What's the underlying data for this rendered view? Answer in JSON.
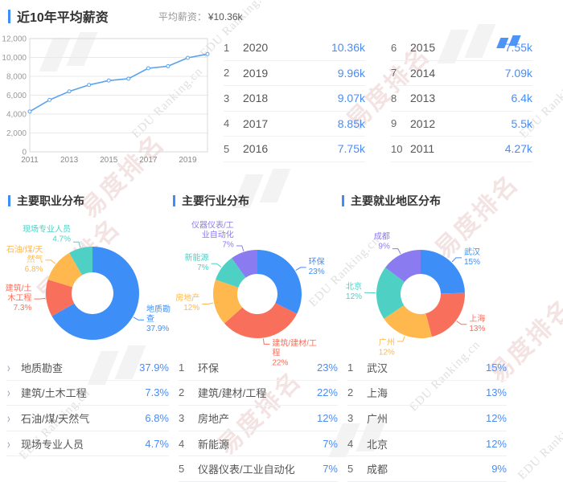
{
  "watermark": {
    "logo_text": "易度排名",
    "brand_text": "EDU Ranking.cn"
  },
  "icons": {
    "chevron_right": "›"
  },
  "colors": {
    "accent": "#3E8EF7",
    "value_blue": "#4A8CF5",
    "line": "#5AA2EF",
    "donut": [
      "#3E8EF7",
      "#F8705C",
      "#FFB84D",
      "#4FD0C5",
      "#8B7BF0"
    ]
  },
  "salary_section": {
    "title": "近10年平均薪资",
    "avg_label": "平均薪资：",
    "avg_value": "¥10.36k",
    "table": {
      "rows": [
        {
          "rank": "1",
          "year": "2020",
          "value": "10.36k"
        },
        {
          "rank": "2",
          "year": "2019",
          "value": "9.96k"
        },
        {
          "rank": "3",
          "year": "2018",
          "value": "9.07k"
        },
        {
          "rank": "4",
          "year": "2017",
          "value": "8.85k"
        },
        {
          "rank": "5",
          "year": "2016",
          "value": "7.75k"
        },
        {
          "rank": "6",
          "year": "2015",
          "value": "7.55k"
        },
        {
          "rank": "7",
          "year": "2014",
          "value": "7.09k"
        },
        {
          "rank": "8",
          "year": "2013",
          "value": "6.4k"
        },
        {
          "rank": "9",
          "year": "2012",
          "value": "5.5k"
        },
        {
          "rank": "10",
          "year": "2011",
          "value": "4.27k"
        }
      ]
    }
  },
  "chart_data": [
    {
      "type": "line",
      "title": "近10年平均薪资",
      "x": [
        2011,
        2012,
        2013,
        2014,
        2015,
        2016,
        2017,
        2018,
        2019,
        2020
      ],
      "values": [
        4270,
        5500,
        6400,
        7090,
        7550,
        7750,
        8850,
        9070,
        9960,
        10360
      ],
      "ylim": [
        0,
        12000
      ],
      "ytick_labels": [
        "0",
        "2,000",
        "4,000",
        "6,000",
        "8,000",
        "10,000",
        "12,000"
      ],
      "xtick_labels": [
        "2011",
        "2013",
        "2015",
        "2017",
        "2019"
      ],
      "grid": true,
      "legend": "none"
    },
    {
      "type": "pie",
      "subtype": "donut",
      "title": "主要职业分布",
      "categories": [
        "地质勘查",
        "建筑/土木工程",
        "石油/煤/天然气",
        "现场专业人员"
      ],
      "values": [
        37.9,
        7.3,
        6.8,
        4.7
      ],
      "unit": "%"
    },
    {
      "type": "pie",
      "subtype": "donut",
      "title": "主要行业分布",
      "categories": [
        "环保",
        "建筑/建材/工程",
        "房地产",
        "新能源",
        "仪器仪表/工业自动化"
      ],
      "values": [
        23,
        22,
        12,
        7,
        7
      ],
      "unit": "%"
    },
    {
      "type": "pie",
      "subtype": "donut",
      "title": "主要就业地区分布",
      "categories": [
        "武汉",
        "上海",
        "广州",
        "北京",
        "成都"
      ],
      "values": [
        15,
        13,
        12,
        12,
        9
      ],
      "unit": "%"
    }
  ],
  "sections": [
    {
      "title": "主要职业分布",
      "marker": "chevron",
      "items": [
        {
          "label": "地质勘查",
          "value": "37.9%"
        },
        {
          "label": "建筑/土木工程",
          "value": "7.3%"
        },
        {
          "label": "石油/煤/天然气",
          "value": "6.8%"
        },
        {
          "label": "现场专业人员",
          "value": "4.7%"
        }
      ]
    },
    {
      "title": "主要行业分布",
      "marker": "number",
      "items": [
        {
          "rank": "1",
          "label": "环保",
          "value": "23%"
        },
        {
          "rank": "2",
          "label": "建筑/建材/工程",
          "value": "22%"
        },
        {
          "rank": "3",
          "label": "房地产",
          "value": "12%"
        },
        {
          "rank": "4",
          "label": "新能源",
          "value": "7%"
        },
        {
          "rank": "5",
          "label": "仪器仪表/工业自动化",
          "value": "7%"
        }
      ]
    },
    {
      "title": "主要就业地区分布",
      "marker": "number",
      "items": [
        {
          "rank": "1",
          "label": "武汉",
          "value": "15%"
        },
        {
          "rank": "2",
          "label": "上海",
          "value": "13%"
        },
        {
          "rank": "3",
          "label": "广州",
          "value": "12%"
        },
        {
          "rank": "4",
          "label": "北京",
          "value": "12%"
        },
        {
          "rank": "5",
          "label": "成都",
          "value": "9%"
        }
      ]
    }
  ]
}
